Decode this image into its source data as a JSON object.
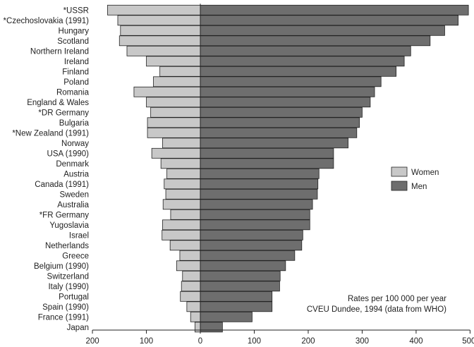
{
  "chart_data": {
    "type": "bar",
    "orientation": "horizontal-butterfly",
    "categories": [
      "*USSR",
      "*Czechoslovakia (1991)",
      "Hungary",
      "Scotland",
      "Northern Ireland",
      "Ireland",
      "Finland",
      "Poland",
      "Romania",
      "England & Wales",
      "*DR Germany",
      "Bulgaria",
      "*New Zealand (1991)",
      "Norway",
      "USA (1990)",
      "Denmark",
      "Austria",
      "Canada (1991)",
      "Sweden",
      "Australia",
      "*FR Germany",
      "Yugoslavia",
      "Israel",
      "Netherlands",
      "Greece",
      "Belgium (1990)",
      "Switzerland",
      "Italy (1990)",
      "Portugal",
      "Spain (1990)",
      "France (1991)",
      "Japan"
    ],
    "series": [
      {
        "name": "Women",
        "color": "#c8c8c8",
        "values": [
          172,
          153,
          148,
          150,
          136,
          100,
          75,
          87,
          123,
          100,
          92,
          98,
          98,
          70,
          90,
          73,
          62,
          67,
          64,
          69,
          55,
          70,
          71,
          56,
          38,
          44,
          33,
          35,
          37,
          25,
          18,
          10
        ]
      },
      {
        "name": "Men",
        "color": "#6e6e6e",
        "values": [
          497,
          478,
          453,
          426,
          390,
          378,
          363,
          335,
          323,
          315,
          300,
          295,
          290,
          274,
          247,
          247,
          220,
          218,
          217,
          208,
          203,
          203,
          190,
          188,
          175,
          158,
          148,
          147,
          133,
          133,
          96,
          41
        ]
      }
    ],
    "xlim": [
      -200,
      500
    ],
    "xticks": [
      -200,
      -100,
      0,
      100,
      200,
      300,
      400,
      500
    ],
    "xticklabels": [
      "200",
      "100",
      "0",
      "100",
      "200",
      "300",
      "400",
      "500"
    ],
    "annotation": [
      "Rates per 100 000 per year",
      "CVEU Dundee, 1994 (data from WHO)"
    ],
    "legend_position": "right",
    "grid": false
  }
}
